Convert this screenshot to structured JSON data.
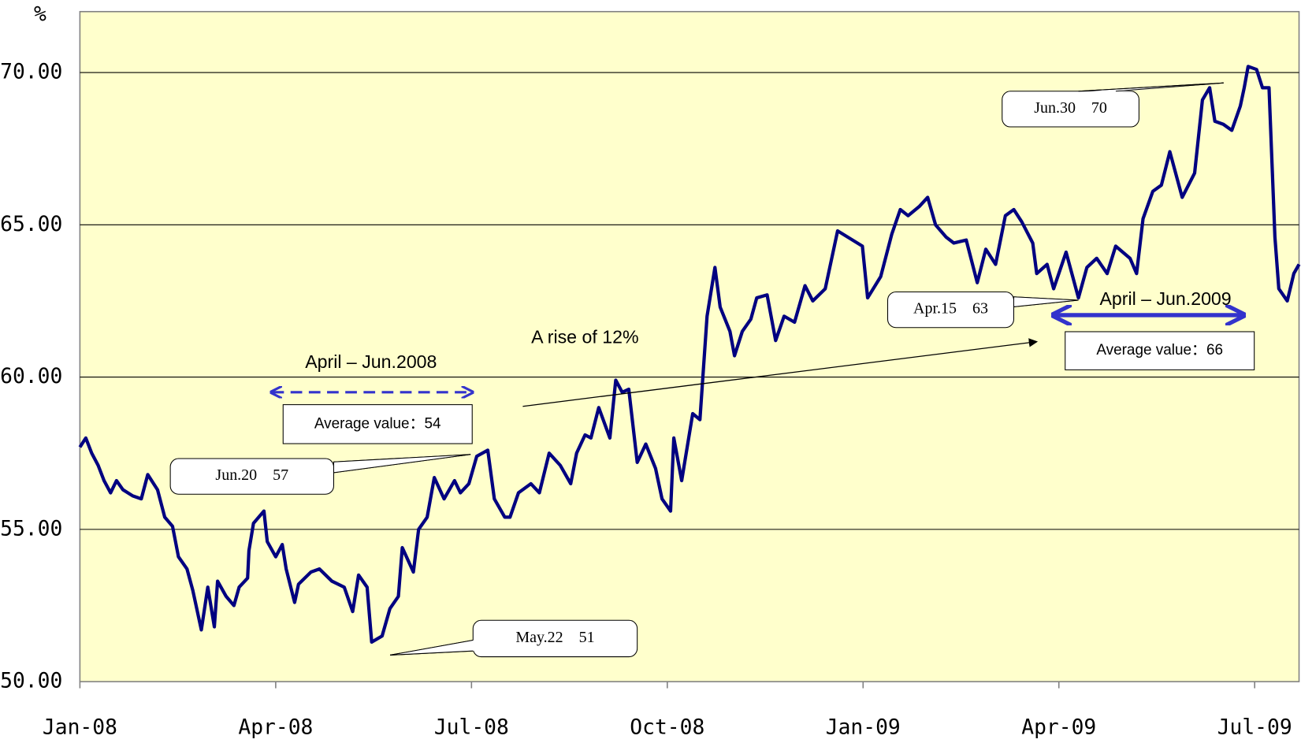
{
  "chart_data": {
    "type": "line",
    "y_label": "%",
    "color": "#000080",
    "grid": true,
    "xlim": [
      0,
      18.68
    ],
    "xticks": [
      {
        "value": 0,
        "label": "Jan-08"
      },
      {
        "value": 3,
        "label": "Apr-08"
      },
      {
        "value": 6,
        "label": "Jul-08"
      },
      {
        "value": 9,
        "label": "Oct-08"
      },
      {
        "value": 12,
        "label": "Jan-09"
      },
      {
        "value": 15,
        "label": "Apr-09"
      },
      {
        "value": 18,
        "label": "Jul-09"
      }
    ],
    "ylim": [
      50,
      72
    ],
    "yticks": [
      {
        "value": 50,
        "label": "50.00"
      },
      {
        "value": 55,
        "label": "55.00"
      },
      {
        "value": 60,
        "label": "60.00"
      },
      {
        "value": 65,
        "label": "65.00"
      },
      {
        "value": 70,
        "label": "70.00"
      }
    ],
    "x": [
      0,
      0.09,
      0.18,
      0.28,
      0.37,
      0.47,
      0.56,
      0.66,
      0.81,
      0.94,
      1.04,
      1.19,
      1.3,
      1.42,
      1.51,
      1.64,
      1.73,
      1.86,
      1.96,
      2.06,
      2.11,
      2.24,
      2.36,
      2.44,
      2.57,
      2.59,
      2.66,
      2.74,
      2.82,
      2.87,
      3.0,
      3.1,
      3.16,
      3.29,
      3.35,
      3.54,
      3.67,
      3.86,
      4.05,
      4.18,
      4.27,
      4.4,
      4.47,
      4.63,
      4.75,
      4.88,
      4.94,
      5.11,
      5.19,
      5.32,
      5.43,
      5.58,
      5.74,
      5.83,
      5.96,
      6.08,
      6.25,
      6.35,
      6.51,
      6.59,
      6.72,
      6.91,
      7.04,
      7.19,
      7.36,
      7.52,
      7.61,
      7.74,
      7.83,
      7.95,
      8.12,
      8.21,
      8.31,
      8.41,
      8.54,
      8.67,
      8.82,
      8.92,
      9.05,
      9.1,
      9.22,
      9.39,
      9.5,
      9.61,
      9.73,
      9.81,
      9.96,
      10.03,
      10.15,
      10.28,
      10.37,
      10.53,
      10.66,
      10.79,
      10.95,
      11.11,
      11.23,
      11.42,
      11.61,
      11.99,
      12.07,
      12.27,
      12.44,
      12.57,
      12.69,
      12.86,
      12.99,
      13.11,
      13.27,
      13.39,
      13.58,
      13.75,
      13.88,
      14.03,
      14.18,
      14.31,
      14.43,
      14.6,
      14.66,
      14.82,
      14.92,
      15.11,
      15.3,
      15.43,
      15.58,
      15.74,
      15.87,
      16.09,
      16.19,
      16.29,
      16.44,
      16.57,
      16.7,
      16.89,
      17.08,
      17.2,
      17.31,
      17.39,
      17.52,
      17.65,
      17.78,
      17.84,
      17.9,
      18.03,
      18.12,
      18.22,
      18.31,
      18.37,
      18.5,
      18.6,
      18.68
    ],
    "values": [
      57.7,
      58.0,
      57.5,
      57.1,
      56.6,
      56.2,
      56.6,
      56.3,
      56.1,
      56.0,
      56.8,
      56.3,
      55.4,
      55.1,
      54.1,
      53.7,
      53.0,
      51.7,
      53.1,
      51.8,
      53.3,
      52.8,
      52.5,
      53.1,
      53.4,
      54.3,
      55.2,
      55.4,
      55.6,
      54.6,
      54.1,
      54.5,
      53.7,
      52.6,
      53.2,
      53.6,
      53.7,
      53.3,
      53.1,
      52.3,
      53.5,
      53.1,
      51.3,
      51.5,
      52.4,
      52.8,
      54.4,
      53.6,
      55.0,
      55.4,
      56.7,
      56.0,
      56.6,
      56.2,
      56.5,
      57.4,
      57.6,
      56.0,
      55.4,
      55.4,
      56.2,
      56.5,
      56.2,
      57.5,
      57.1,
      56.5,
      57.5,
      58.1,
      58.0,
      59.0,
      58.0,
      59.9,
      59.5,
      59.6,
      57.2,
      57.8,
      57.0,
      56.0,
      55.6,
      58.0,
      56.6,
      58.8,
      58.6,
      62.0,
      63.6,
      62.3,
      61.5,
      60.7,
      61.5,
      61.9,
      62.6,
      62.7,
      61.2,
      62.0,
      61.8,
      63.0,
      62.5,
      62.9,
      64.8,
      64.3,
      62.6,
      63.3,
      64.7,
      65.5,
      65.3,
      65.6,
      65.9,
      65.0,
      64.6,
      64.4,
      64.5,
      63.1,
      64.2,
      63.7,
      65.3,
      65.5,
      65.1,
      64.4,
      63.4,
      63.7,
      62.9,
      64.1,
      62.6,
      63.6,
      63.9,
      63.4,
      64.3,
      63.9,
      63.4,
      65.2,
      66.1,
      66.3,
      67.4,
      65.9,
      66.7,
      69.1,
      69.5,
      68.4,
      68.3,
      68.1,
      68.9,
      69.5,
      70.2,
      70.1,
      69.5,
      69.5,
      64.6,
      62.9,
      62.5,
      63.4,
      63.7
    ],
    "annotations": [
      "Jun.30　70",
      "Apr.15　63",
      "May.22　51",
      "Jun.20　57",
      "April – Jun.2008",
      "Average value：54",
      "April – Jun.2009",
      "Average value：66",
      "A rise of 12%"
    ]
  }
}
